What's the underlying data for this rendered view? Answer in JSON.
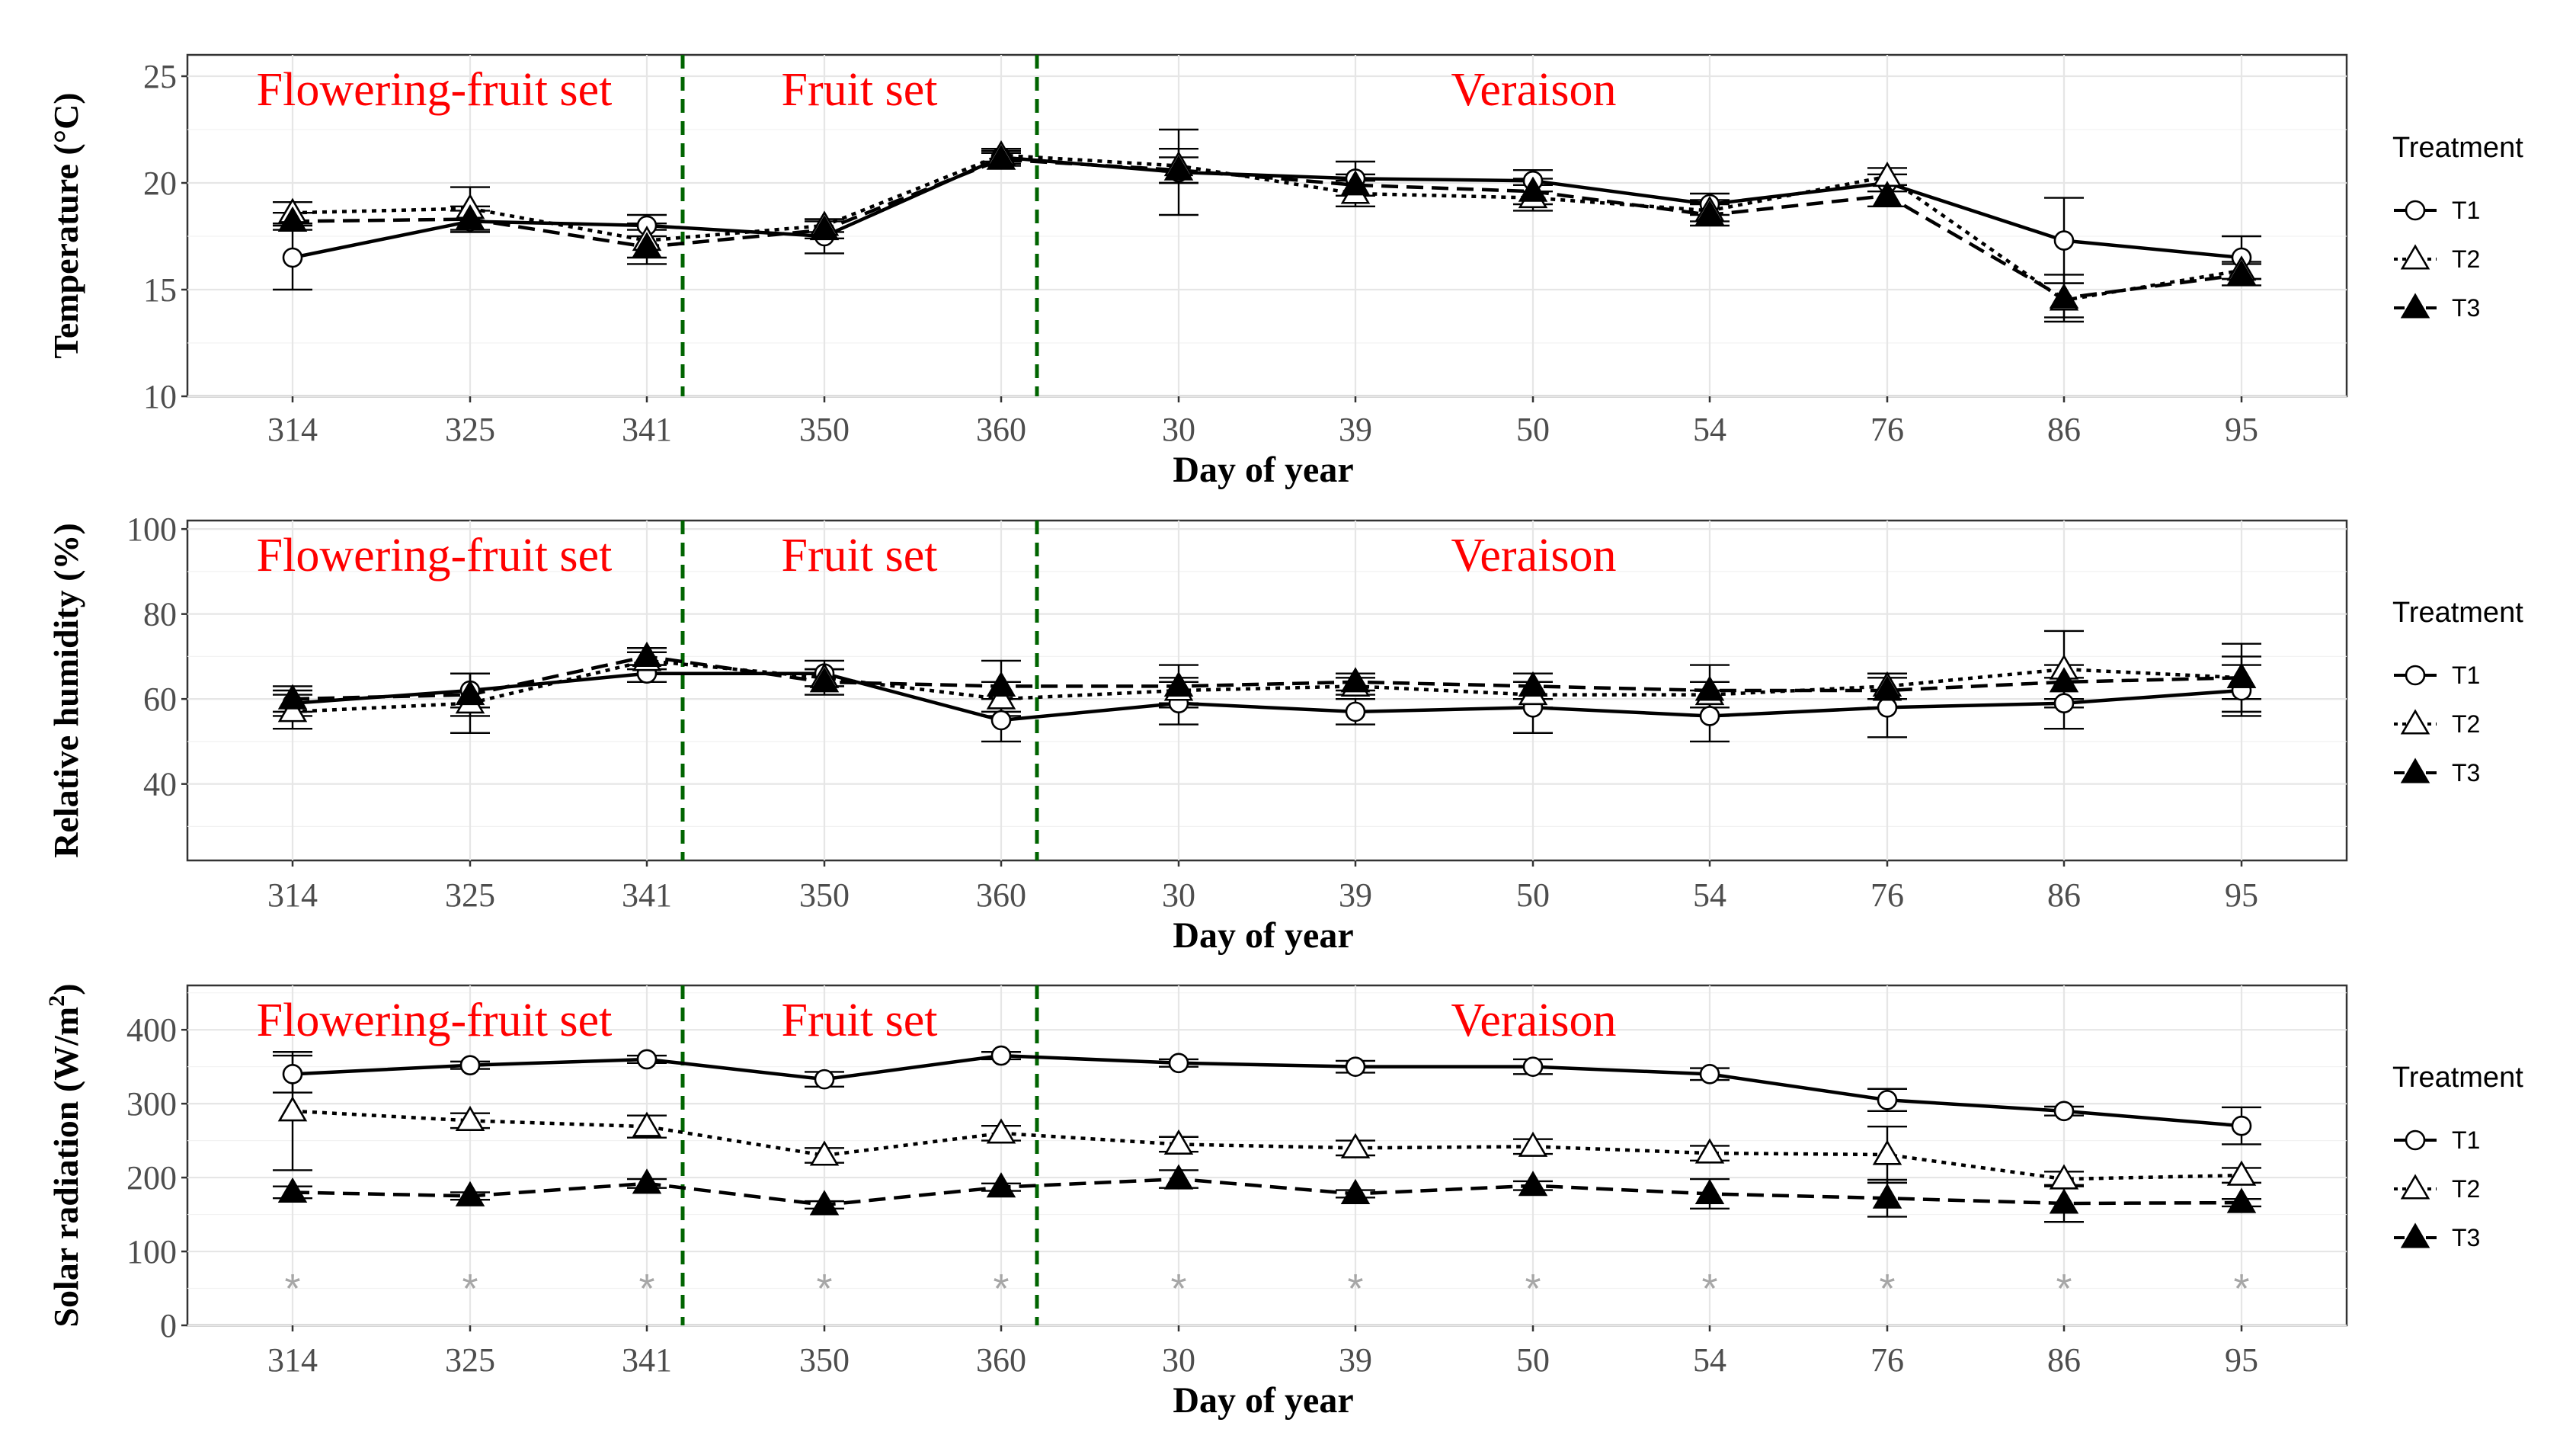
{
  "chart_data": [
    {
      "type": "line",
      "ylabel": "Temperature (°C)",
      "xlabel": "Day of year",
      "ylim": [
        10,
        26
      ],
      "yticks": [
        10,
        15,
        20,
        25
      ],
      "categories": [
        "314",
        "325",
        "341",
        "350",
        "360",
        "30",
        "39",
        "50",
        "54",
        "76",
        "86",
        "95"
      ],
      "phases": {
        "labels": [
          "Flowering-fruit set",
          "Fruit set",
          "Veraison"
        ],
        "boundaries_after_index": [
          2,
          4
        ]
      },
      "series": [
        {
          "name": "T1",
          "values": [
            16.5,
            18.2,
            18.0,
            17.5,
            21.2,
            20.5,
            20.2,
            20.1,
            19.0,
            20.0,
            17.3,
            16.5
          ],
          "err": [
            1.5,
            0.5,
            0.5,
            0.8,
            0.3,
            2.0,
            0.8,
            0.5,
            0.5,
            0.4,
            2.0,
            1.0
          ]
        },
        {
          "name": "T2",
          "values": [
            18.6,
            18.8,
            17.3,
            18.0,
            21.3,
            20.8,
            19.5,
            19.3,
            18.7,
            20.3,
            14.5,
            15.9
          ],
          "err": [
            0.5,
            1.0,
            0.8,
            0.3,
            0.3,
            0.8,
            0.6,
            0.6,
            0.5,
            0.4,
            0.8,
            0.4
          ]
        },
        {
          "name": "T3",
          "values": [
            18.2,
            18.3,
            17.0,
            17.8,
            21.1,
            20.6,
            19.9,
            19.6,
            18.5,
            19.4,
            14.6,
            15.7
          ],
          "err": [
            0.4,
            0.6,
            0.8,
            0.4,
            0.3,
            0.6,
            0.5,
            0.6,
            0.5,
            0.5,
            1.1,
            0.5
          ]
        }
      ],
      "legend": {
        "title": "Treatment",
        "position": "right"
      }
    },
    {
      "type": "line",
      "ylabel": "Relative humidity (%)",
      "xlabel": "Day of year",
      "ylim": [
        22,
        102
      ],
      "yticks": [
        40,
        60,
        80,
        100
      ],
      "categories": [
        "314",
        "325",
        "341",
        "350",
        "360",
        "30",
        "39",
        "50",
        "54",
        "76",
        "86",
        "95"
      ],
      "phases": {
        "labels": [
          "Flowering-fruit set",
          "Fruit set",
          "Veraison"
        ],
        "boundaries_after_index": [
          2,
          4
        ]
      },
      "series": [
        {
          "name": "T1",
          "values": [
            59,
            62,
            66,
            66,
            55,
            59,
            57,
            58,
            56,
            58,
            59,
            62
          ],
          "err": [
            3,
            4,
            2,
            3,
            5,
            5,
            3,
            6,
            6,
            7,
            6,
            6
          ]
        },
        {
          "name": "T2",
          "values": [
            57,
            59,
            69,
            65,
            60,
            62,
            63,
            61,
            61,
            63,
            67,
            65
          ],
          "err": [
            4,
            7,
            2,
            2,
            4,
            3,
            2,
            3,
            3,
            3,
            9,
            5
          ]
        },
        {
          "name": "T3",
          "values": [
            60,
            61,
            70,
            64,
            63,
            63,
            64,
            63,
            62,
            62,
            64,
            65
          ],
          "err": [
            3,
            5,
            2,
            3,
            6,
            5,
            2,
            3,
            6,
            4,
            4,
            8
          ]
        }
      ],
      "legend": {
        "title": "Treatment",
        "position": "right"
      }
    },
    {
      "type": "line",
      "ylabel": "Solar radiation (W/m",
      "ylabel_sup": "2",
      "ylabel_close": ")",
      "xlabel": "Day of year",
      "ylim": [
        0,
        460
      ],
      "yticks": [
        0,
        100,
        200,
        300,
        400
      ],
      "categories": [
        "314",
        "325",
        "341",
        "350",
        "360",
        "30",
        "39",
        "50",
        "54",
        "76",
        "86",
        "95"
      ],
      "phases": {
        "labels": [
          "Flowering-fruit set",
          "Fruit set",
          "Veraison"
        ],
        "boundaries_after_index": [
          2,
          4
        ]
      },
      "significance_markers": [
        "*",
        "*",
        "*",
        "*",
        "*",
        "*",
        "*",
        "*",
        "*",
        "*",
        "*",
        "*"
      ],
      "significance_y": 60,
      "series": [
        {
          "name": "T1",
          "values": [
            340,
            352,
            360,
            333,
            365,
            355,
            350,
            350,
            340,
            305,
            290,
            270
          ],
          "err": [
            25,
            5,
            5,
            10,
            5,
            5,
            8,
            10,
            8,
            15,
            6,
            25
          ]
        },
        {
          "name": "T2",
          "values": [
            290,
            277,
            269,
            230,
            260,
            245,
            240,
            242,
            233,
            231,
            198,
            203
          ],
          "err": [
            80,
            10,
            15,
            10,
            10,
            10,
            10,
            10,
            10,
            38,
            10,
            10
          ]
        },
        {
          "name": "T3",
          "values": [
            180,
            175,
            192,
            163,
            187,
            198,
            178,
            189,
            178,
            172,
            165,
            166
          ],
          "err": [
            8,
            5,
            6,
            5,
            5,
            12,
            5,
            6,
            20,
            25,
            25,
            5
          ]
        }
      ],
      "legend": {
        "title": "Treatment",
        "position": "right"
      }
    }
  ]
}
